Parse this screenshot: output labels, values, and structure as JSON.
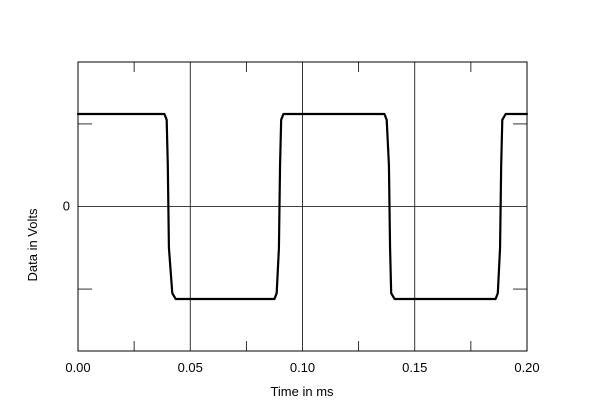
{
  "chart_data": {
    "type": "line",
    "xlabel": "Time in ms",
    "ylabel": "Data in Volts",
    "xlim": [
      0,
      0.2
    ],
    "ylim": [
      -1.75,
      1.75
    ],
    "xticks": [
      "0.00",
      "0.05",
      "0.10",
      "0.15",
      "0.20"
    ],
    "yticks": [
      {
        "value": 0,
        "label": "0"
      }
    ],
    "y_minor_ticks": [
      1,
      -1
    ],
    "x_minor_ticks": [
      0.025,
      0.075,
      0.125,
      0.175
    ],
    "grid": true,
    "series": [
      {
        "color": "#000000",
        "x": [
          0.0,
          0.0385,
          0.0395,
          0.04,
          0.0405,
          0.042,
          0.0435,
          0.0875,
          0.0885,
          0.0895,
          0.09,
          0.0905,
          0.0915,
          0.093,
          0.1365,
          0.1375,
          0.1385,
          0.139,
          0.1395,
          0.141,
          0.1425,
          0.186,
          0.187,
          0.188,
          0.1885,
          0.189,
          0.1905,
          0.192,
          0.2
        ],
        "y": [
          1.12,
          1.12,
          1.05,
          0.5,
          -0.5,
          -1.05,
          -1.12,
          -1.12,
          -1.05,
          -0.5,
          0.5,
          1.05,
          1.12,
          1.12,
          1.12,
          1.05,
          0.5,
          -0.5,
          -1.05,
          -1.12,
          -1.12,
          -1.12,
          -1.05,
          -0.5,
          0.5,
          1.05,
          1.12,
          1.12,
          1.12
        ]
      }
    ]
  }
}
